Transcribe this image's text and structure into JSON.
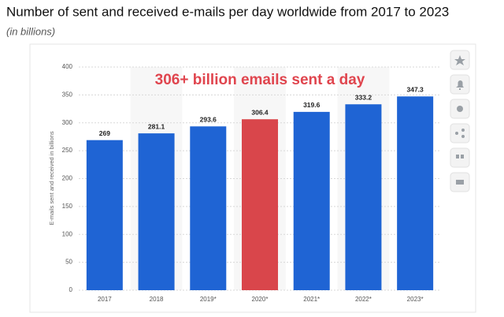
{
  "chart_data": {
    "type": "bar",
    "title": "Number of sent and received e-mails per day worldwide from 2017 to 2023",
    "subtitle": "(in billions)",
    "y_label": "E-mails sent and received in billions",
    "annotation": "306+ billion emails sent a day",
    "categories": [
      "2017",
      "2018",
      "2019*",
      "2020*",
      "2021*",
      "2022*",
      "2023*"
    ],
    "values": [
      269,
      281.1,
      293.6,
      306.4,
      319.6,
      333.2,
      347.3
    ],
    "colors": [
      "#1f64d4",
      "#1f64d4",
      "#1f64d4",
      "#d9464b",
      "#1f64d4",
      "#1f64d4",
      "#1f64d4"
    ],
    "ylim": [
      0,
      400
    ],
    "yticks": [
      0,
      50,
      100,
      150,
      200,
      250,
      300,
      350,
      400
    ],
    "grid": true
  }
}
